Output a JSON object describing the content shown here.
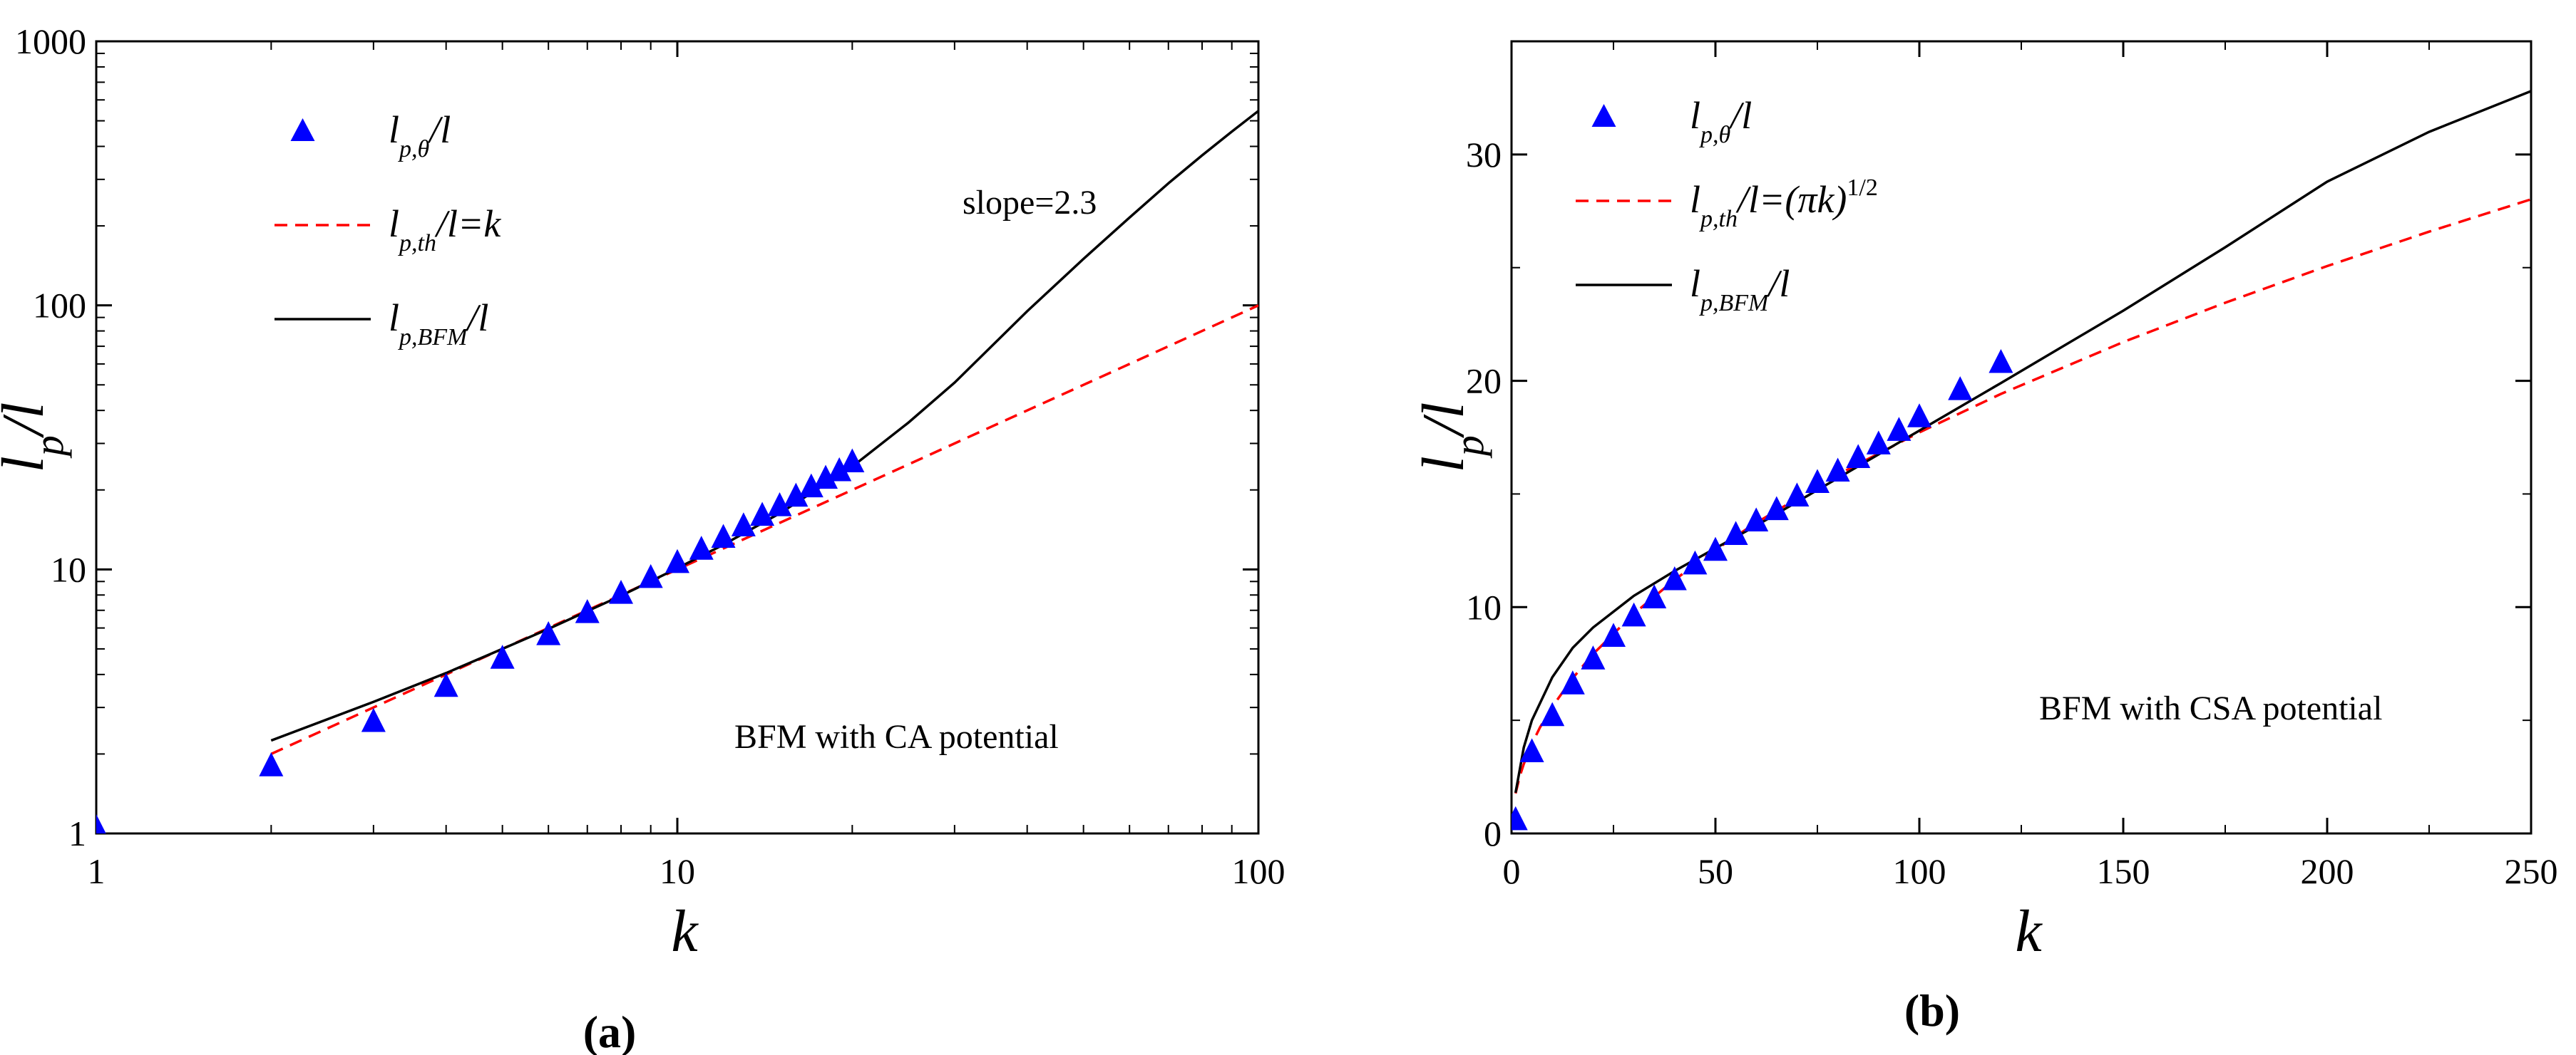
{
  "chart_data": [
    {
      "panel_label": "(a)",
      "type": "scatter",
      "xscale": "log",
      "yscale": "log",
      "xlim": [
        1,
        100
      ],
      "ylim": [
        1,
        1000
      ],
      "xticks": [
        1,
        10,
        100
      ],
      "xtick_labels": [
        "1",
        "10",
        "100"
      ],
      "yticks": [
        1,
        10,
        100,
        1000
      ],
      "ytick_labels": [
        "1",
        "10",
        "100",
        "1000"
      ],
      "xlabel": "k",
      "ylabel": {
        "main": "l",
        "sub": "p",
        "suffix": "/l"
      },
      "legend_position": "top-left",
      "grid": false,
      "annotation": "slope=2.3",
      "note": "BFM with CA potential",
      "series": [
        {
          "name": "l_{p,θ}/l",
          "legend": {
            "main": "l",
            "sub": "p,θ",
            "suffix": "/l"
          },
          "kind": "scatter",
          "marker": "triangle",
          "color": "#0000ff",
          "x": [
            1,
            2,
            3,
            4,
            5,
            6,
            7,
            8,
            9,
            10,
            11,
            12,
            13,
            14,
            15,
            16,
            17,
            18,
            19,
            20
          ],
          "y": [
            1.05,
            1.8,
            2.65,
            3.6,
            4.6,
            5.65,
            6.85,
            8.1,
            9.3,
            10.6,
            11.9,
            13.2,
            14.6,
            16.0,
            17.4,
            18.9,
            20.5,
            22.1,
            23.6,
            25.5
          ]
        },
        {
          "name": "l_{p,th}/l=k",
          "legend": {
            "main": "l",
            "sub": "p,th",
            "suffix": "/l=k"
          },
          "kind": "line",
          "style": "dashed",
          "color": "#ff0000",
          "x": [
            2,
            100
          ],
          "y": [
            2,
            100
          ]
        },
        {
          "name": "l_{p,BFM}/l",
          "legend": {
            "main": "l",
            "sub": "p,BFM",
            "suffix": "/l"
          },
          "kind": "line",
          "style": "solid",
          "color": "#000000",
          "x": [
            2,
            3,
            4,
            5,
            6,
            7,
            8,
            10,
            12,
            15,
            20,
            25,
            30,
            40,
            50,
            60,
            70,
            80,
            90,
            100
          ],
          "y": [
            2.25,
            3.15,
            4.05,
            5.0,
            5.95,
            6.95,
            7.95,
            10.1,
            12.4,
            16.3,
            24.5,
            36,
            51,
            95,
            150,
            215,
            290,
            370,
            455,
            545
          ]
        }
      ]
    },
    {
      "panel_label": "(b)",
      "type": "scatter",
      "xscale": "linear",
      "yscale": "linear",
      "xlim": [
        0,
        250
      ],
      "ylim": [
        0,
        35
      ],
      "xticks": [
        0,
        50,
        100,
        150,
        200,
        250
      ],
      "xtick_labels": [
        "0",
        "50",
        "100",
        "150",
        "200",
        "250"
      ],
      "yticks": [
        0,
        10,
        20,
        30
      ],
      "ytick_labels": [
        "0",
        "10",
        "20",
        "30"
      ],
      "xlabel": "k",
      "ylabel": {
        "main": "l",
        "sub": "p",
        "suffix": "/l"
      },
      "legend_position": "top-left",
      "grid": false,
      "note": "BFM with CSA potential",
      "series": [
        {
          "name": "l_{p,θ}/l",
          "legend": {
            "main": "l",
            "sub": "p,θ",
            "suffix": "/l"
          },
          "kind": "scatter",
          "marker": "triangle",
          "color": "#0000ff",
          "x": [
            1,
            5,
            10,
            15,
            20,
            25,
            30,
            35,
            40,
            45,
            50,
            55,
            60,
            65,
            70,
            75,
            80,
            85,
            90,
            95,
            100,
            110,
            120
          ],
          "y": [
            0.6,
            3.6,
            5.2,
            6.6,
            7.7,
            8.7,
            9.6,
            10.4,
            11.2,
            11.9,
            12.5,
            13.2,
            13.8,
            14.3,
            14.9,
            15.5,
            16.0,
            16.6,
            17.2,
            17.8,
            18.4,
            19.6,
            20.8
          ]
        },
        {
          "name": "l_{p,th}/l=(πk)^{1/2}",
          "legend": {
            "main": "l",
            "sub": "p,th",
            "suffix": "/l=(πk)",
            "sup": "1/2"
          },
          "kind": "line",
          "style": "dashed",
          "color": "#ff0000",
          "x": [
            1,
            2,
            3,
            5,
            7,
            10,
            15,
            20,
            30,
            40,
            50,
            60,
            80,
            100,
            120,
            150,
            175,
            200,
            225,
            250
          ],
          "y": [
            1.77,
            2.51,
            3.07,
            3.96,
            4.69,
            5.6,
            6.86,
            7.93,
            9.71,
            11.21,
            12.53,
            13.73,
            15.85,
            17.72,
            19.42,
            21.71,
            23.45,
            25.07,
            26.59,
            28.02
          ]
        },
        {
          "name": "l_{p,BFM}/l",
          "legend": {
            "main": "l",
            "sub": "p,BFM",
            "suffix": "/l"
          },
          "kind": "line",
          "style": "solid",
          "color": "#000000",
          "x": [
            1,
            3,
            5,
            10,
            15,
            20,
            30,
            40,
            50,
            60,
            80,
            100,
            120,
            150,
            175,
            200,
            225,
            250
          ],
          "y": [
            1.8,
            3.8,
            5.0,
            6.9,
            8.2,
            9.1,
            10.5,
            11.6,
            12.6,
            13.6,
            15.7,
            17.8,
            19.9,
            23.1,
            25.9,
            28.8,
            31.0,
            32.8
          ]
        }
      ]
    }
  ]
}
